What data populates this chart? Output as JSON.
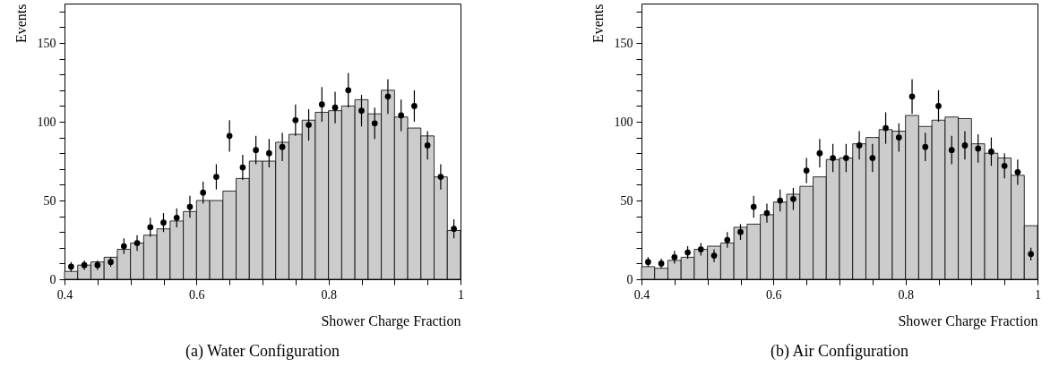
{
  "chart_data": [
    {
      "type": "histogram",
      "title": "(a) Water Configuration",
      "xlabel": "Shower Charge Fraction",
      "ylabel": "Events",
      "xlim": [
        0.4,
        1
      ],
      "ylim": [
        0,
        175
      ],
      "xticks": [
        {
          "value": 0.4,
          "label": "0.4"
        },
        {
          "value": 0.45,
          "label": null
        },
        {
          "value": 0.5,
          "label": null
        },
        {
          "value": 0.55,
          "label": null
        },
        {
          "value": 0.6,
          "label": "0.6"
        },
        {
          "value": 0.65,
          "label": null
        },
        {
          "value": 0.7,
          "label": null
        },
        {
          "value": 0.75,
          "label": null
        },
        {
          "value": 0.8,
          "label": "0.8"
        },
        {
          "value": 0.85,
          "label": null
        },
        {
          "value": 0.9,
          "label": null
        },
        {
          "value": 0.95,
          "label": null
        },
        1
      ],
      "yticks": [
        0,
        {
          "value": 10,
          "label": null
        },
        {
          "value": 20,
          "label": null
        },
        {
          "value": 30,
          "label": null
        },
        {
          "value": 40,
          "label": null
        },
        50,
        {
          "value": 60,
          "label": null
        },
        {
          "value": 70,
          "label": null
        },
        {
          "value": 80,
          "label": null
        },
        {
          "value": 90,
          "label": null
        },
        100,
        {
          "value": 110,
          "label": null
        },
        {
          "value": 120,
          "label": null
        },
        {
          "value": 130,
          "label": null
        },
        {
          "value": 140,
          "label": null
        },
        150,
        {
          "value": 160,
          "label": null
        },
        {
          "value": 170,
          "label": null
        }
      ],
      "grid": false,
      "bins": [
        0.4,
        0.42,
        0.44,
        0.46,
        0.48,
        0.5,
        0.52,
        0.54,
        0.56,
        0.58,
        0.6,
        0.62,
        0.64,
        0.66,
        0.68,
        0.7,
        0.72,
        0.74,
        0.76,
        0.78,
        0.8,
        0.82,
        0.84,
        0.86,
        0.88,
        0.9,
        0.92,
        0.94,
        0.96,
        0.98,
        1.0
      ],
      "series": [
        {
          "type": "histogram",
          "color": "#cccccc",
          "values": [
            5,
            9,
            11,
            14,
            19,
            23,
            28,
            32,
            37,
            43,
            50,
            50,
            56,
            64,
            75,
            75,
            87,
            92,
            101,
            106,
            107,
            110,
            114,
            105,
            120,
            103,
            96,
            91,
            65,
            31
          ]
        },
        {
          "type": "scatter",
          "color": "#000000",
          "marker": "circle",
          "x": [
            0.41,
            0.43,
            0.45,
            0.47,
            0.49,
            0.51,
            0.53,
            0.55,
            0.57,
            0.59,
            0.61,
            0.63,
            0.65,
            0.67,
            0.69,
            0.71,
            0.73,
            0.75,
            0.77,
            0.79,
            0.81,
            0.83,
            0.85,
            0.87,
            0.89,
            0.91,
            0.93,
            0.95,
            0.97,
            0.99
          ],
          "values": [
            8,
            9,
            9,
            11,
            21,
            23,
            33,
            36,
            39,
            46,
            55,
            65,
            91,
            71,
            82,
            80,
            84,
            101,
            98,
            111,
            109,
            120,
            107,
            99,
            116,
            104,
            110,
            85,
            65,
            32
          ],
          "errors": [
            3,
            3,
            3,
            3,
            5,
            5,
            6,
            6,
            6,
            7,
            7,
            8,
            10,
            8,
            9,
            9,
            9,
            10,
            10,
            11,
            10,
            11,
            10,
            10,
            11,
            10,
            10,
            9,
            8,
            6
          ]
        }
      ]
    },
    {
      "type": "histogram",
      "title": "(b) Air Configuration",
      "xlabel": "Shower Charge Fraction",
      "ylabel": "Events",
      "xlim": [
        0.4,
        1
      ],
      "ylim": [
        0,
        175
      ],
      "xticks": [
        {
          "value": 0.4,
          "label": "0.4"
        },
        {
          "value": 0.45,
          "label": null
        },
        {
          "value": 0.5,
          "label": null
        },
        {
          "value": 0.55,
          "label": null
        },
        {
          "value": 0.6,
          "label": "0.6"
        },
        {
          "value": 0.65,
          "label": null
        },
        {
          "value": 0.7,
          "label": null
        },
        {
          "value": 0.75,
          "label": null
        },
        {
          "value": 0.8,
          "label": "0.8"
        },
        {
          "value": 0.85,
          "label": null
        },
        {
          "value": 0.9,
          "label": null
        },
        {
          "value": 0.95,
          "label": null
        },
        1
      ],
      "yticks": [
        0,
        {
          "value": 10,
          "label": null
        },
        {
          "value": 20,
          "label": null
        },
        {
          "value": 30,
          "label": null
        },
        {
          "value": 40,
          "label": null
        },
        50,
        {
          "value": 60,
          "label": null
        },
        {
          "value": 70,
          "label": null
        },
        {
          "value": 80,
          "label": null
        },
        {
          "value": 90,
          "label": null
        },
        100,
        {
          "value": 110,
          "label": null
        },
        {
          "value": 120,
          "label": null
        },
        {
          "value": 130,
          "label": null
        },
        {
          "value": 140,
          "label": null
        },
        150,
        {
          "value": 160,
          "label": null
        },
        {
          "value": 170,
          "label": null
        }
      ],
      "grid": false,
      "bins": [
        0.4,
        0.42,
        0.44,
        0.46,
        0.48,
        0.5,
        0.52,
        0.54,
        0.56,
        0.58,
        0.6,
        0.62,
        0.64,
        0.66,
        0.68,
        0.7,
        0.72,
        0.74,
        0.76,
        0.78,
        0.8,
        0.82,
        0.84,
        0.86,
        0.88,
        0.9,
        0.92,
        0.94,
        0.96,
        0.98,
        1.0
      ],
      "series": [
        {
          "type": "histogram",
          "color": "#cccccc",
          "values": [
            8,
            7,
            12,
            14,
            19,
            21,
            23,
            33,
            35,
            41,
            49,
            54,
            59,
            65,
            76,
            77,
            86,
            90,
            95,
            94,
            104,
            97,
            101,
            103,
            102,
            86,
            80,
            77,
            66,
            34
          ]
        },
        {
          "type": "scatter",
          "color": "#000000",
          "marker": "circle",
          "x": [
            0.41,
            0.43,
            0.45,
            0.47,
            0.49,
            0.51,
            0.53,
            0.55,
            0.57,
            0.59,
            0.61,
            0.63,
            0.65,
            0.67,
            0.69,
            0.71,
            0.73,
            0.75,
            0.77,
            0.79,
            0.81,
            0.83,
            0.85,
            0.87,
            0.89,
            0.91,
            0.93,
            0.95,
            0.97,
            0.99
          ],
          "values": [
            11,
            10,
            14,
            17,
            19,
            15,
            25,
            30,
            46,
            42,
            50,
            51,
            69,
            80,
            77,
            77,
            85,
            77,
            96,
            90,
            116,
            84,
            110,
            82,
            85,
            83,
            81,
            72,
            68,
            16
          ],
          "errors": [
            3,
            3,
            4,
            4,
            4,
            4,
            5,
            5,
            7,
            6,
            7,
            7,
            8,
            9,
            9,
            9,
            9,
            9,
            10,
            9,
            11,
            9,
            10,
            9,
            9,
            9,
            9,
            8,
            8,
            4
          ]
        }
      ]
    }
  ]
}
